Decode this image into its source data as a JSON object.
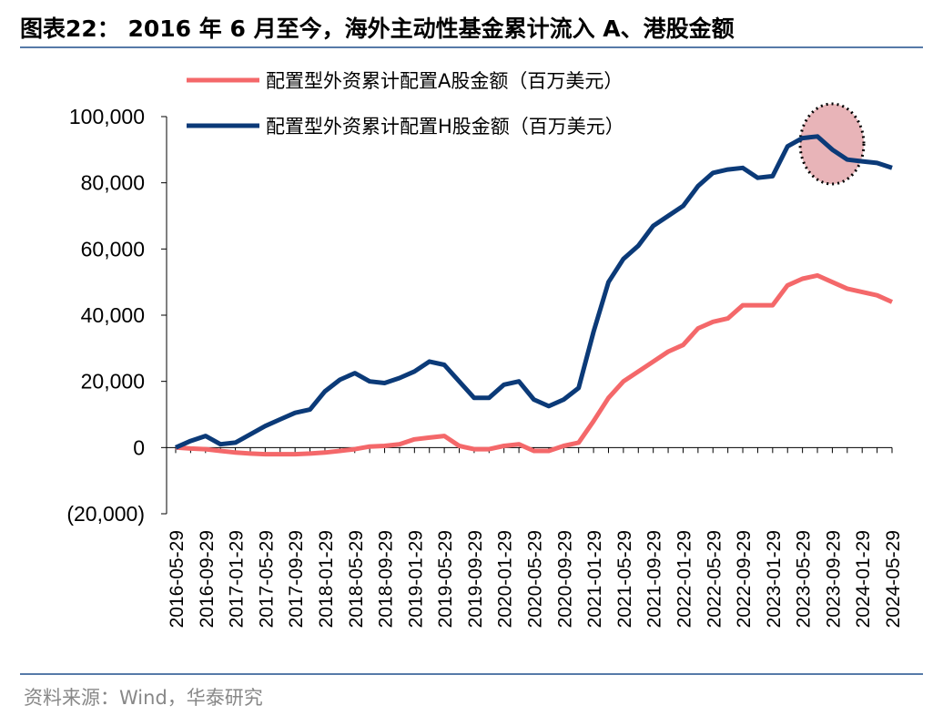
{
  "chart_data": {
    "type": "line",
    "title": "图表22： 2016 年 6 月至今，海外主动性基金累计流入 A、港股金额",
    "source": "资料来源：Wind，华泰研究",
    "categories": [
      "2016-05-29",
      null,
      "2016-09-29",
      null,
      "2017-01-29",
      null,
      "2017-05-29",
      null,
      "2017-09-29",
      null,
      "2018-01-29",
      null,
      "2018-05-29",
      null,
      "2018-09-29",
      null,
      "2019-01-29",
      null,
      "2019-05-29",
      null,
      "2019-09-29",
      null,
      "2020-01-29",
      null,
      "2020-05-29",
      null,
      "2020-09-29",
      null,
      "2021-01-29",
      null,
      "2021-05-29",
      null,
      "2021-09-29",
      null,
      "2022-01-29",
      null,
      "2022-05-29",
      null,
      "2022-09-29",
      null,
      "2023-01-29",
      null,
      "2023-05-29",
      null,
      "2023-09-29",
      null,
      "2024-01-29",
      null,
      "2024-05-29"
    ],
    "series": [
      {
        "name": "配置型外资累计配置A股金额（百万美元）",
        "color": "#f4686a",
        "values": [
          0,
          -300,
          -500,
          -1000,
          -1500,
          -1800,
          -2000,
          -2000,
          -2000,
          -1800,
          -1500,
          -1000,
          -500,
          300,
          500,
          1000,
          2500,
          3000,
          3500,
          500,
          -500,
          -500,
          500,
          1000,
          -1000,
          -1000,
          500,
          1500,
          8000,
          15000,
          20000,
          23000,
          26000,
          29000,
          31000,
          36000,
          38000,
          39000,
          43000,
          43000,
          43000,
          49000,
          51000,
          52000,
          50000,
          48000,
          47000,
          46000,
          44000
        ]
      },
      {
        "name": "配置型外资累计配置H股金额（百万美元）",
        "color": "#0b3a78",
        "values": [
          0,
          2000,
          3500,
          1000,
          1500,
          4000,
          6500,
          8500,
          10500,
          11500,
          17000,
          20500,
          22500,
          20000,
          19500,
          21000,
          23000,
          26000,
          25000,
          20000,
          15000,
          15000,
          19000,
          20000,
          14500,
          12500,
          14500,
          18000,
          35000,
          50000,
          57000,
          61000,
          67000,
          70000,
          73000,
          79000,
          83000,
          84000,
          84500,
          81500,
          82000,
          91000,
          93500,
          94000,
          90000,
          87000,
          86500,
          86000,
          84500
        ]
      }
    ],
    "ylim": [
      -20000,
      100000
    ],
    "yticks": [
      {
        "value": -20000,
        "label": "(20,000)"
      },
      0,
      {
        "value": 20000,
        "label": "20,000"
      },
      {
        "value": 40000,
        "label": "40,000"
      },
      {
        "value": 60000,
        "label": "60,000"
      },
      {
        "value": 80000,
        "label": "80,000"
      },
      {
        "value": 100000,
        "label": "100,000"
      }
    ]
  }
}
